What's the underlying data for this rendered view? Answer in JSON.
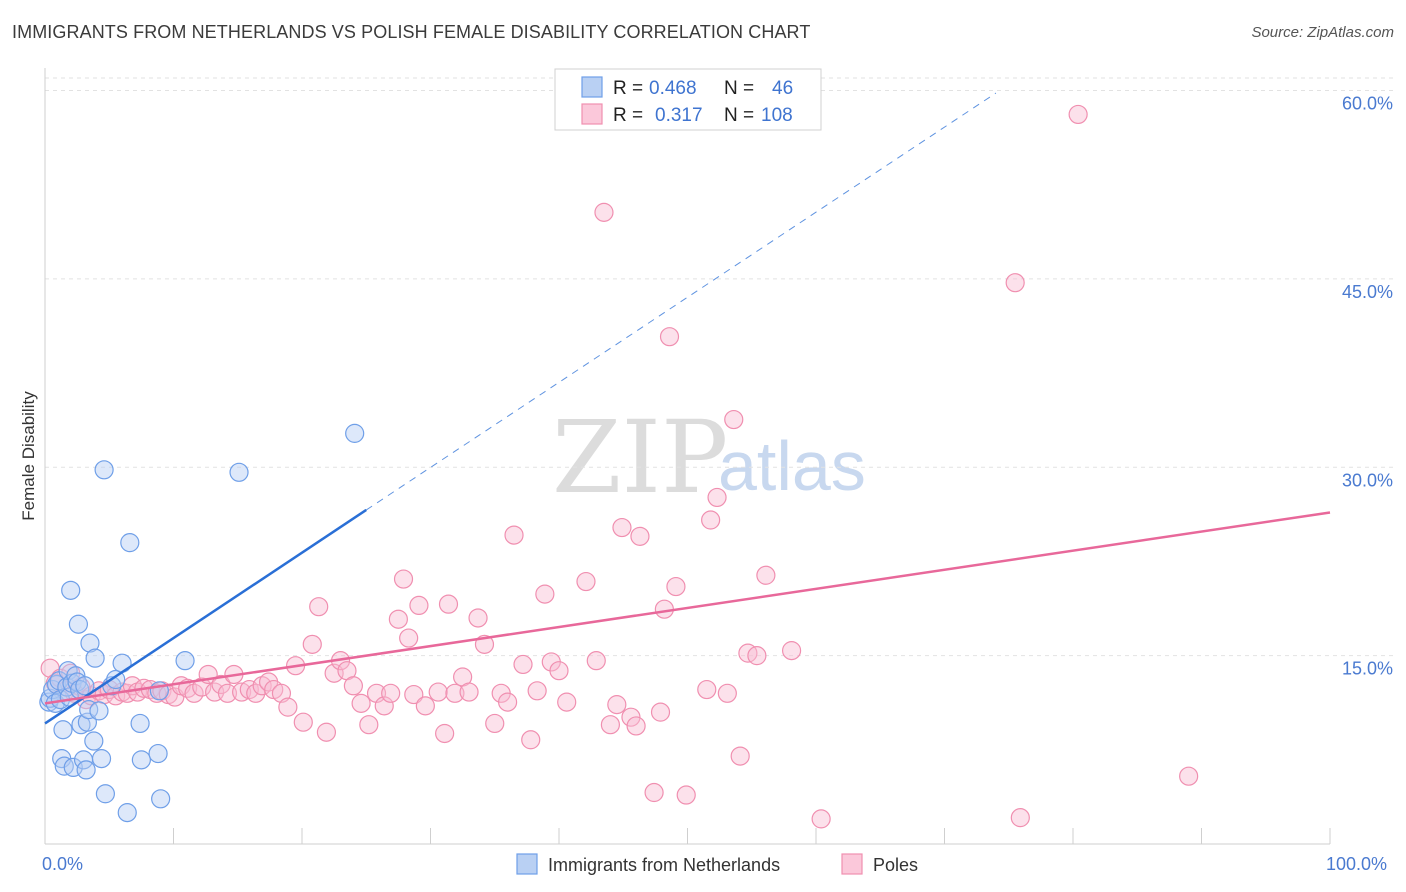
{
  "header": {
    "title": "IMMIGRANTS FROM NETHERLANDS VS POLISH FEMALE DISABILITY CORRELATION CHART",
    "source": "Source: ZipAtlas.com"
  },
  "watermark": {
    "zip": "ZIP",
    "atlas": "atlas"
  },
  "legend": {
    "series1": {
      "r_label": "R =",
      "r_value": "0.468",
      "n_label": "N =",
      "n_value": "46",
      "color": "#6f9fe8"
    },
    "series2": {
      "r_label": "R =",
      "r_value": "0.317",
      "n_label": "N =",
      "n_value": "108",
      "color": "#f08fb0"
    }
  },
  "bottom_legend": {
    "series1": "Immigrants from Netherlands",
    "series2": "Poles"
  },
  "chart_data": {
    "type": "scatter",
    "title": "IMMIGRANTS FROM NETHERLANDS VS POLISH FEMALE DISABILITY CORRELATION CHART",
    "xlabel": "",
    "ylabel": "Female Disability",
    "xlim": [
      0,
      100
    ],
    "ylim": [
      0,
      61
    ],
    "x_tick_labels": [
      "0.0%",
      "100.0%"
    ],
    "y_ticks": [
      15,
      30,
      45,
      60
    ],
    "y_tick_labels": [
      "15.0%",
      "30.0%",
      "45.0%",
      "60.0%"
    ],
    "grid": true,
    "legend_position": "top-center",
    "series": [
      {
        "name": "Immigrants from Netherlands",
        "color": "#6f9fe8",
        "line_color": "#2a6fd6",
        "trend": {
          "x": [
            0,
            25
          ],
          "y": [
            9.6,
            26.6
          ],
          "dashed_to": [
            74,
            59.8
          ]
        },
        "points": [
          [
            0.3,
            11.3
          ],
          [
            0.4,
            11.6
          ],
          [
            0.6,
            12.3
          ],
          [
            0.8,
            11.2
          ],
          [
            0.9,
            12.7
          ],
          [
            1.1,
            13.0
          ],
          [
            1.2,
            11.5
          ],
          [
            1.3,
            6.8
          ],
          [
            1.4,
            9.1
          ],
          [
            1.5,
            6.2
          ],
          [
            1.7,
            12.5
          ],
          [
            1.8,
            13.8
          ],
          [
            1.9,
            11.7
          ],
          [
            2.0,
            20.2
          ],
          [
            2.1,
            12.8
          ],
          [
            2.2,
            6.1
          ],
          [
            2.4,
            13.4
          ],
          [
            2.5,
            12.9
          ],
          [
            2.6,
            17.5
          ],
          [
            2.7,
            12.3
          ],
          [
            2.8,
            9.5
          ],
          [
            3.0,
            6.7
          ],
          [
            3.1,
            12.6
          ],
          [
            3.2,
            5.9
          ],
          [
            3.3,
            9.7
          ],
          [
            3.4,
            10.7
          ],
          [
            3.5,
            16.0
          ],
          [
            3.8,
            8.2
          ],
          [
            3.9,
            14.8
          ],
          [
            4.2,
            10.6
          ],
          [
            4.4,
            6.8
          ],
          [
            4.6,
            29.8
          ],
          [
            4.7,
            4.0
          ],
          [
            5.2,
            12.6
          ],
          [
            5.5,
            13.1
          ],
          [
            6.0,
            14.4
          ],
          [
            6.4,
            2.5
          ],
          [
            6.6,
            24.0
          ],
          [
            7.4,
            9.6
          ],
          [
            7.5,
            6.7
          ],
          [
            8.8,
            7.2
          ],
          [
            8.9,
            12.2
          ],
          [
            9.0,
            3.6
          ],
          [
            10.9,
            14.6
          ],
          [
            15.1,
            29.6
          ],
          [
            24.1,
            32.7
          ]
        ]
      },
      {
        "name": "Poles",
        "color": "#f08fb0",
        "line_color": "#e8689a",
        "trend": {
          "x": [
            0,
            100
          ],
          "y": [
            11.2,
            26.4
          ]
        },
        "points": [
          [
            0.4,
            14.0
          ],
          [
            0.8,
            12.8
          ],
          [
            1.2,
            13.2
          ],
          [
            1.6,
            12.2
          ],
          [
            2.0,
            13.6
          ],
          [
            2.3,
            12.0
          ],
          [
            2.8,
            12.5
          ],
          [
            3.2,
            11.5
          ],
          [
            3.6,
            11.8
          ],
          [
            4.2,
            12.2
          ],
          [
            4.6,
            11.9
          ],
          [
            5.0,
            12.3
          ],
          [
            5.5,
            11.8
          ],
          [
            6.0,
            12.1
          ],
          [
            6.4,
            12.0
          ],
          [
            6.8,
            12.6
          ],
          [
            7.2,
            12.1
          ],
          [
            7.7,
            12.4
          ],
          [
            8.2,
            12.3
          ],
          [
            8.7,
            12.0
          ],
          [
            9.1,
            12.2
          ],
          [
            9.6,
            11.9
          ],
          [
            10.1,
            11.7
          ],
          [
            10.6,
            12.6
          ],
          [
            11.1,
            12.4
          ],
          [
            11.6,
            12.0
          ],
          [
            12.2,
            12.5
          ],
          [
            12.7,
            13.5
          ],
          [
            13.2,
            12.1
          ],
          [
            13.7,
            12.7
          ],
          [
            14.2,
            12.0
          ],
          [
            14.7,
            13.5
          ],
          [
            15.3,
            12.1
          ],
          [
            15.9,
            12.3
          ],
          [
            16.4,
            12.0
          ],
          [
            16.9,
            12.6
          ],
          [
            17.4,
            12.9
          ],
          [
            17.8,
            12.3
          ],
          [
            18.4,
            12.0
          ],
          [
            18.9,
            10.9
          ],
          [
            19.5,
            14.2
          ],
          [
            20.1,
            9.7
          ],
          [
            20.8,
            15.9
          ],
          [
            21.3,
            18.9
          ],
          [
            21.9,
            8.9
          ],
          [
            22.5,
            13.6
          ],
          [
            23.0,
            14.6
          ],
          [
            23.5,
            13.8
          ],
          [
            24.0,
            12.6
          ],
          [
            24.6,
            11.2
          ],
          [
            25.2,
            9.5
          ],
          [
            25.8,
            12.0
          ],
          [
            26.4,
            11.0
          ],
          [
            26.9,
            12.0
          ],
          [
            27.5,
            17.9
          ],
          [
            27.9,
            21.1
          ],
          [
            28.3,
            16.4
          ],
          [
            28.7,
            11.9
          ],
          [
            29.1,
            19.0
          ],
          [
            29.6,
            11.0
          ],
          [
            30.6,
            12.1
          ],
          [
            31.1,
            8.8
          ],
          [
            31.4,
            19.1
          ],
          [
            31.9,
            12.0
          ],
          [
            32.5,
            13.3
          ],
          [
            33.0,
            12.1
          ],
          [
            33.7,
            18.0
          ],
          [
            34.2,
            15.9
          ],
          [
            35.0,
            9.6
          ],
          [
            35.5,
            12.0
          ],
          [
            36.0,
            11.3
          ],
          [
            36.5,
            24.6
          ],
          [
            37.2,
            14.3
          ],
          [
            37.8,
            8.3
          ],
          [
            38.3,
            12.2
          ],
          [
            38.9,
            19.9
          ],
          [
            39.4,
            14.5
          ],
          [
            40.0,
            13.8
          ],
          [
            40.6,
            11.3
          ],
          [
            41.3,
            60.0
          ],
          [
            42.1,
            20.9
          ],
          [
            42.9,
            14.6
          ],
          [
            43.5,
            50.3
          ],
          [
            44.0,
            9.5
          ],
          [
            44.5,
            11.1
          ],
          [
            44.9,
            25.2
          ],
          [
            45.6,
            10.1
          ],
          [
            46.0,
            9.4
          ],
          [
            46.3,
            24.5
          ],
          [
            47.4,
            4.1
          ],
          [
            47.9,
            10.5
          ],
          [
            48.2,
            18.7
          ],
          [
            48.6,
            40.4
          ],
          [
            49.1,
            20.5
          ],
          [
            49.9,
            3.9
          ],
          [
            51.5,
            12.3
          ],
          [
            51.8,
            25.8
          ],
          [
            52.3,
            27.6
          ],
          [
            53.1,
            12.0
          ],
          [
            53.6,
            33.8
          ],
          [
            54.1,
            7.0
          ],
          [
            54.7,
            15.2
          ],
          [
            55.4,
            15.0
          ],
          [
            56.1,
            21.4
          ],
          [
            58.1,
            15.4
          ],
          [
            60.4,
            2.0
          ],
          [
            75.5,
            44.7
          ],
          [
            75.9,
            2.1
          ],
          [
            80.4,
            58.1
          ],
          [
            89.0,
            5.4
          ]
        ]
      }
    ]
  }
}
